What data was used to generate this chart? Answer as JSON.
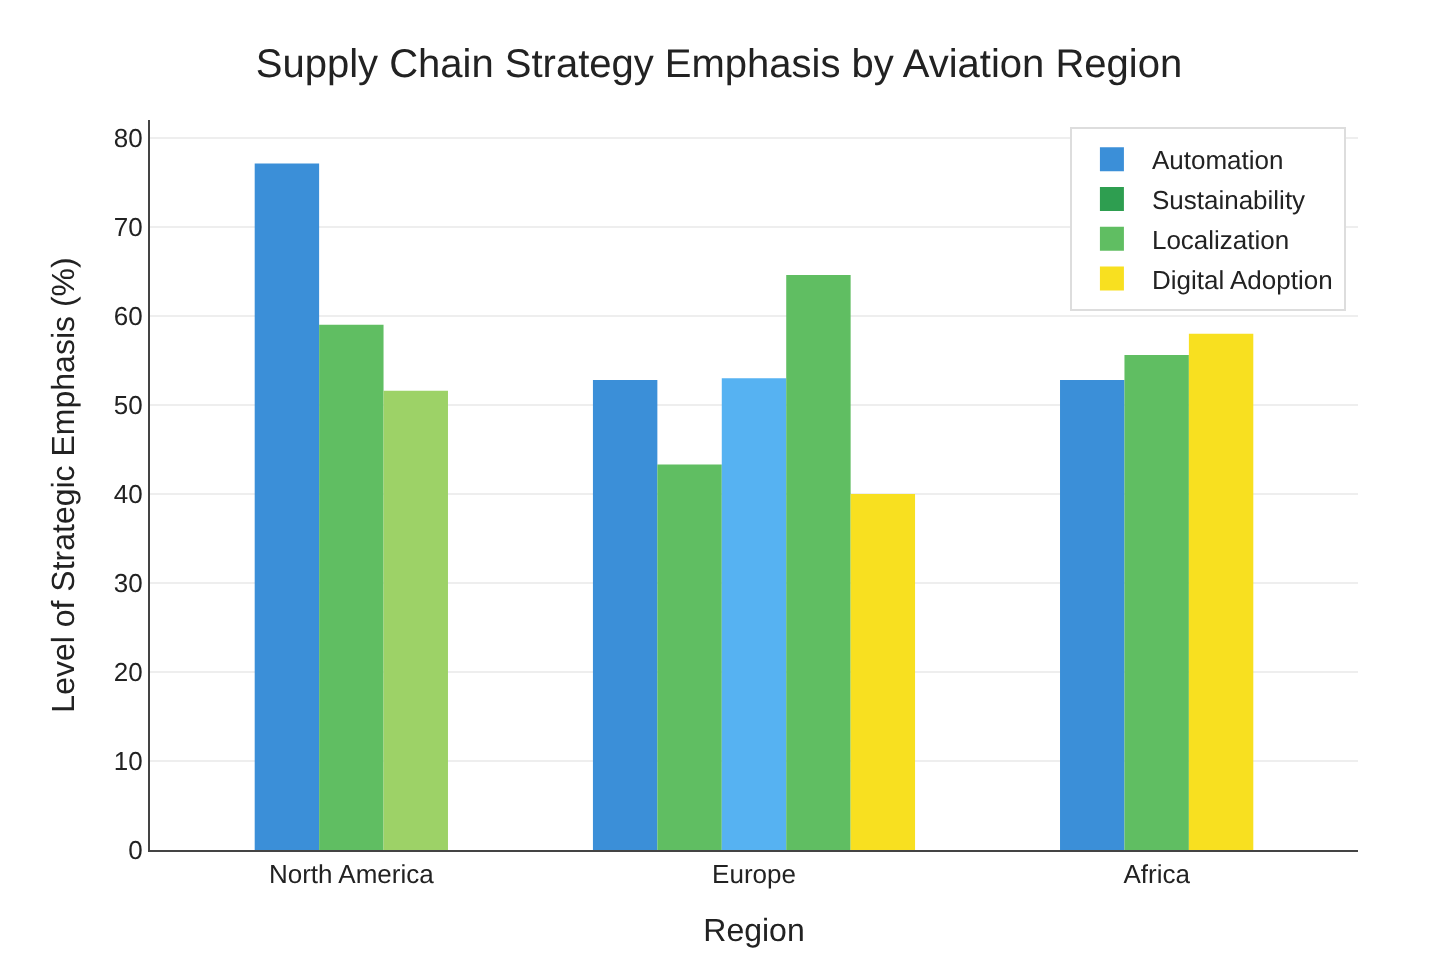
{
  "chart_data": {
    "type": "bar",
    "title": "Supply Chain Strategy Emphasis by Aviation Region",
    "xlabel": "Region",
    "ylabel": "Level of Strategic Emphasis (%)",
    "categories": [
      "North America",
      "Europe",
      "Africa"
    ],
    "series": [
      {
        "name": "Automation",
        "color": "#3b8fd8",
        "values": [
          77.1,
          52.8,
          52.8
        ]
      },
      {
        "name": "Sustainability",
        "color": "#2e9e50",
        "values": [
          null,
          null,
          null
        ]
      },
      {
        "name": "Localization",
        "color": "#60be62",
        "values": [
          59.0,
          43.3,
          55.6
        ]
      },
      {
        "colors": [
          "#9dd267",
          "#56b2f2",
          "#f8e020"
        ],
        "values": [
          51.6,
          53.0,
          58.0
        ]
      },
      {
        "color": "#60be62",
        "values": [
          null,
          64.6,
          null
        ]
      },
      {
        "name": "Digital Adoption",
        "color": "#f8e020",
        "values": [
          null,
          40.0,
          null
        ]
      }
    ],
    "ylim": [
      0,
      82
    ],
    "yticks": [
      0,
      10,
      20,
      30,
      40,
      50,
      60,
      70,
      80
    ],
    "grid": "y",
    "legend": "top right"
  }
}
